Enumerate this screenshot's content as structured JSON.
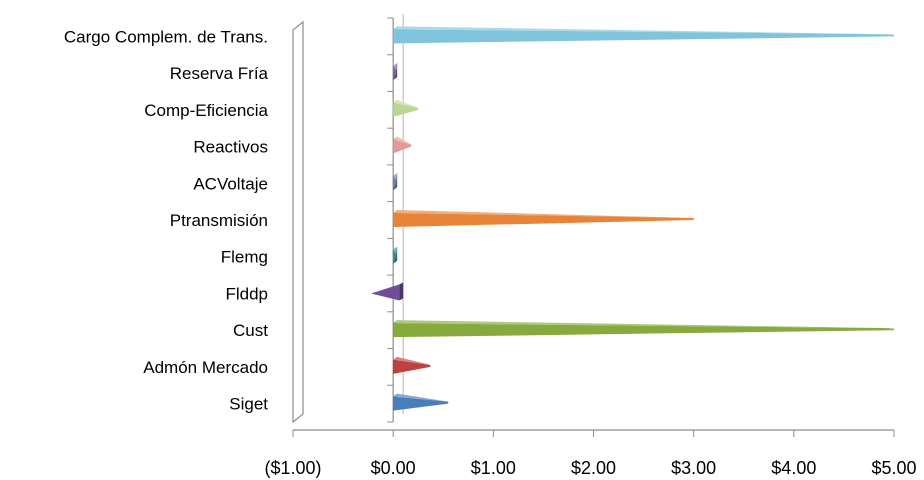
{
  "chart_data": {
    "type": "bar",
    "orientation": "horizontal",
    "style": "3d-cone",
    "categories": [
      "Cargo Complem. de Trans.",
      "Reserva Fría",
      "Comp-Eficiencia",
      "Reactivos",
      "ACVoltaje",
      "Ptransmisión",
      "Flemg",
      "Flddp",
      "Cust",
      "Admón Mercado",
      "Siget"
    ],
    "values": [
      5.0,
      0.03,
      0.25,
      0.18,
      0.03,
      3.0,
      0.03,
      -0.22,
      5.0,
      0.37,
      0.55
    ],
    "colors": [
      "#7fc4dc",
      "#8064a2",
      "#b9d78f",
      "#e39a9a",
      "#6b7fa8",
      "#e8833a",
      "#3b8a9a",
      "#6e4f96",
      "#86aa3e",
      "#be4040",
      "#4a7ebb"
    ],
    "xlim": [
      -1.0,
      5.0
    ],
    "x_ticks": [
      -1,
      0,
      1,
      2,
      3,
      4,
      5
    ],
    "x_tick_labels": [
      "($1.00)",
      "$0.00",
      "$1.00",
      "$2.00",
      "$3.00",
      "$4.00",
      "$5.00"
    ],
    "title": "",
    "xlabel": "",
    "ylabel": "",
    "grid": false,
    "legend": "none"
  }
}
